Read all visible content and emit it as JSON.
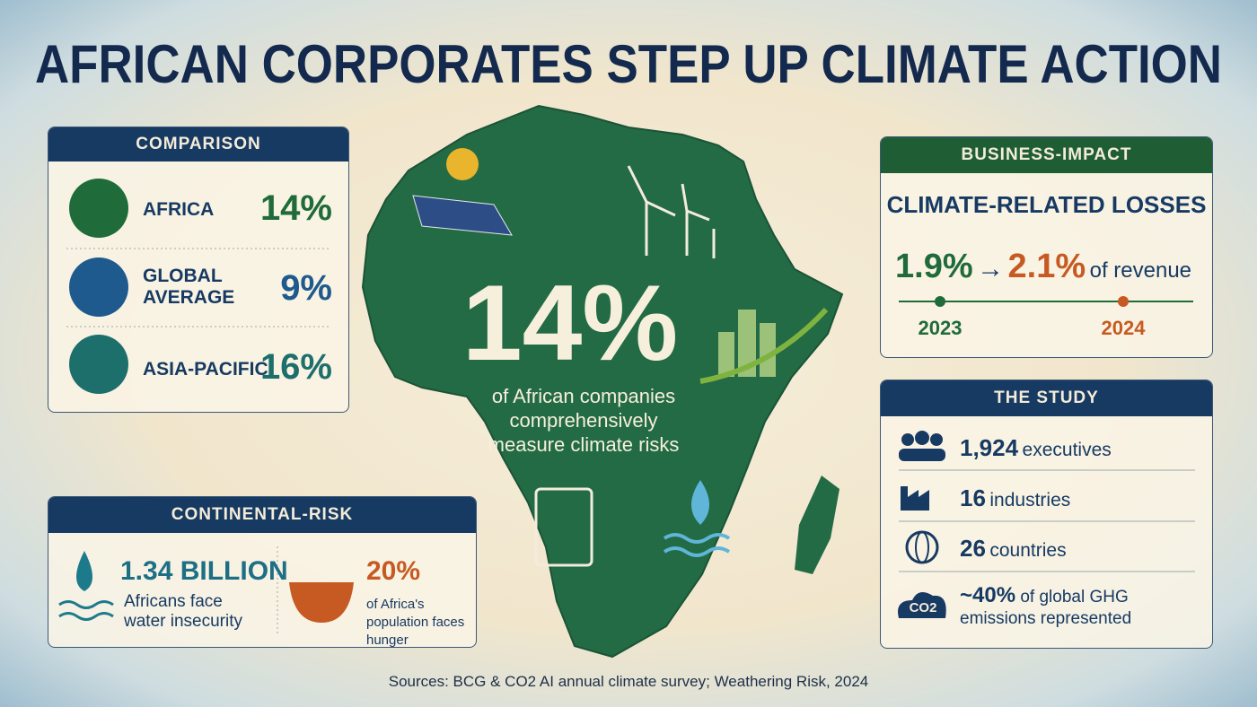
{
  "title": "AFRICAN CORPORATES STEP UP CLIMATE ACTION",
  "comparison": {
    "header": "COMPARISON",
    "rows": [
      {
        "label": "AFRICA",
        "value": "14%"
      },
      {
        "label": "GLOBAL AVERAGE",
        "value": "9%"
      },
      {
        "label": "ASIA-PACIFIC",
        "value": "16%"
      }
    ]
  },
  "center": {
    "value": "14%",
    "caption": "of African companies comprehensively measure climate risks"
  },
  "business_impact": {
    "header": "BUSINESS-IMPACT",
    "subtitle": "CLIMATE-RELATED LOSSES",
    "from": "1.9%",
    "arrow": "→",
    "to": "2.1%",
    "unit": "of revenue",
    "years": [
      "2023",
      "2024"
    ]
  },
  "study": {
    "header": "THE STUDY",
    "items": [
      {
        "value": "1,924",
        "label": "executives"
      },
      {
        "value": "16",
        "label": "industries"
      },
      {
        "value": "26",
        "label": "countries"
      },
      {
        "value": "~40%",
        "label": "of global GHG emissions represented",
        "icon": "CO2"
      }
    ]
  },
  "continental_risk": {
    "header": "CONTINENTAL-RISK",
    "items": [
      {
        "value": "1.34 BILLION",
        "label": "Africans face water insecurity"
      },
      {
        "value": "20%",
        "label": "of Africa's population faces hunger"
      }
    ]
  },
  "source": "Sources: BCG & CO2 AI annual climate survey; Weathering Risk, 2024"
}
